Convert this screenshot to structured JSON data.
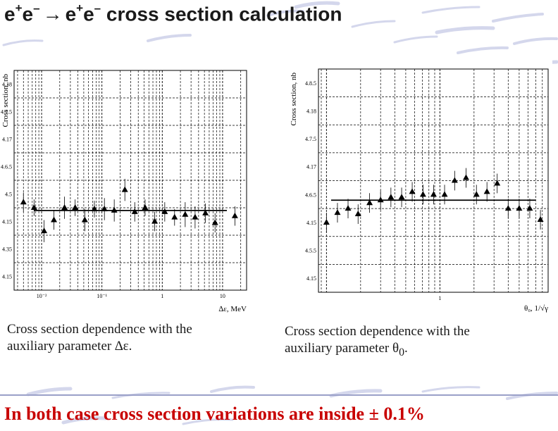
{
  "slide": {
    "title": {
      "part1": "e",
      "sup1": "+",
      "part2": "e",
      "sup2": "–",
      "arrow": "→",
      "part3": "e",
      "sup3": "+",
      "part4": "e",
      "sup4": "–",
      "rest": "cross section calculation"
    },
    "caption_left": {
      "line1": "Cross section dependence with the",
      "line2": "auxiliary parameter",
      "param": "∆ε."
    },
    "caption_right": {
      "line1": "Cross section dependence with the",
      "line2": "auxiliary parameter",
      "param": "θ",
      "param_sub": "0",
      "tail": "."
    },
    "conclusion": "In both case cross section variations are inside  ± 0.1%"
  },
  "colors": {
    "title_text": "#1a1a1a",
    "conclusion_text": "#c80000",
    "decor_swoosh": "#b8bde0",
    "plot_grid": "#000000"
  },
  "chart_data": [
    {
      "type": "scatter",
      "ylabel": "Cross section, nb",
      "xlabel": "∆ε, MeV",
      "x_scale": "log",
      "x_ticks": [
        "10⁻²",
        "10⁻¹",
        "1",
        "10"
      ],
      "y_ticks": [
        "4.15",
        "4.35",
        "4.15",
        "4.5",
        "4.6.5",
        "4.17",
        "4.7.5",
        "4.18",
        "4.8.5"
      ],
      "ylim": [
        0,
        8
      ],
      "reference_line": 2.9,
      "points": [
        {
          "x": 0.005,
          "y": 3.2,
          "err": 0.25
        },
        {
          "x": 0.0075,
          "y": 3.0,
          "err": 0.2
        },
        {
          "x": 0.011,
          "y": 2.15,
          "err": 0.3
        },
        {
          "x": 0.016,
          "y": 2.55,
          "err": 0.25
        },
        {
          "x": 0.024,
          "y": 3.0,
          "err": 0.3
        },
        {
          "x": 0.036,
          "y": 3.0,
          "err": 0.2
        },
        {
          "x": 0.052,
          "y": 2.55,
          "err": 0.3
        },
        {
          "x": 0.075,
          "y": 2.95,
          "err": 0.2
        },
        {
          "x": 0.11,
          "y": 2.95,
          "err": 0.3
        },
        {
          "x": 0.16,
          "y": 2.9,
          "err": 0.3
        },
        {
          "x": 0.24,
          "y": 3.65,
          "err": 0.3
        },
        {
          "x": 0.35,
          "y": 2.85,
          "err": 0.25
        },
        {
          "x": 0.52,
          "y": 3.0,
          "err": 0.2
        },
        {
          "x": 0.75,
          "y": 2.5,
          "err": 0.25
        },
        {
          "x": 1.1,
          "y": 2.85,
          "err": 0.25
        },
        {
          "x": 1.6,
          "y": 2.65,
          "err": 0.2
        },
        {
          "x": 2.4,
          "y": 2.75,
          "err": 0.35
        },
        {
          "x": 3.5,
          "y": 2.65,
          "err": 0.3
        },
        {
          "x": 5.2,
          "y": 2.8,
          "err": 0.25
        },
        {
          "x": 7.5,
          "y": 2.45,
          "err": 0.25
        },
        {
          "x": 16,
          "y": 2.7,
          "err": 0.25
        }
      ]
    },
    {
      "type": "scatter",
      "ylabel": "Cross section, nb",
      "xlabel": "θ₀, 1/√γ",
      "x_scale": "log",
      "x_ticks": [
        "1"
      ],
      "y_ticks": [
        "4.15",
        "4.5.5",
        "4.15",
        "4.6.5",
        "4.17",
        "4.7.5",
        "4.18",
        "4.8.5"
      ],
      "ylim": [
        0,
        8
      ],
      "reference_line": 3.3,
      "points": [
        {
          "x": 0.1,
          "y": 2.5,
          "err": 0.25
        },
        {
          "x": 0.125,
          "y": 2.85,
          "err": 0.25
        },
        {
          "x": 0.155,
          "y": 3.0,
          "err": 0.25
        },
        {
          "x": 0.19,
          "y": 2.8,
          "err": 0.25
        },
        {
          "x": 0.24,
          "y": 3.2,
          "err": 0.25
        },
        {
          "x": 0.3,
          "y": 3.3,
          "err": 0.25
        },
        {
          "x": 0.37,
          "y": 3.4,
          "err": 0.25
        },
        {
          "x": 0.46,
          "y": 3.4,
          "err": 0.25
        },
        {
          "x": 0.57,
          "y": 3.6,
          "err": 0.25
        },
        {
          "x": 0.71,
          "y": 3.5,
          "err": 0.25
        },
        {
          "x": 0.88,
          "y": 3.5,
          "err": 0.25
        },
        {
          "x": 1.1,
          "y": 3.5,
          "err": 0.25
        },
        {
          "x": 1.35,
          "y": 4.0,
          "err": 0.25
        },
        {
          "x": 1.7,
          "y": 4.1,
          "err": 0.25
        },
        {
          "x": 2.1,
          "y": 3.5,
          "err": 0.25
        },
        {
          "x": 2.6,
          "y": 3.6,
          "err": 0.25
        },
        {
          "x": 3.2,
          "y": 3.9,
          "err": 0.25
        },
        {
          "x": 4.0,
          "y": 3.0,
          "err": 0.25
        },
        {
          "x": 5.0,
          "y": 3.0,
          "err": 0.25
        },
        {
          "x": 6.2,
          "y": 3.0,
          "err": 0.25
        },
        {
          "x": 7.7,
          "y": 2.6,
          "err": 0.25
        }
      ]
    }
  ]
}
